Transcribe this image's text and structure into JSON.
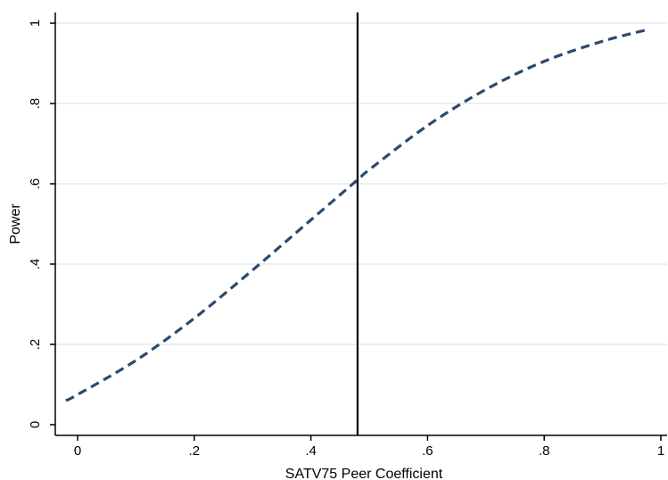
{
  "chart_data": {
    "type": "line",
    "xlabel": "SATV75 Peer Coefficient",
    "ylabel": "Power",
    "xlim": [
      -0.02,
      1.0
    ],
    "ylim": [
      0,
      1
    ],
    "grid": true,
    "x_ticks": [
      {
        "value": 0,
        "label": "0"
      },
      {
        "value": 0.2,
        "label": ".2"
      },
      {
        "value": 0.4,
        "label": ".4"
      },
      {
        "value": 0.6,
        "label": ".6"
      },
      {
        "value": 0.8,
        "label": ".8"
      },
      {
        "value": 1.0,
        "label": "1"
      }
    ],
    "y_ticks": [
      {
        "value": 0,
        "label": "0"
      },
      {
        "value": 0.2,
        "label": ".2"
      },
      {
        "value": 0.4,
        "label": ".4"
      },
      {
        "value": 0.6,
        "label": ".6"
      },
      {
        "value": 0.8,
        "label": ".8"
      },
      {
        "value": 1.0,
        "label": "1"
      }
    ],
    "series": [
      {
        "style": "dashed",
        "color": "#2b4a6e",
        "x": [
          -0.02,
          0.0,
          0.1,
          0.2,
          0.3,
          0.4,
          0.48,
          0.5,
          0.6,
          0.7,
          0.8,
          0.9,
          0.98
        ],
        "y": [
          0.06,
          0.075,
          0.16,
          0.265,
          0.385,
          0.51,
          0.61,
          0.635,
          0.745,
          0.835,
          0.905,
          0.955,
          0.985
        ]
      }
    ],
    "reference_line": {
      "axis": "x",
      "value": 0.48,
      "color": "#000000"
    },
    "colors": {
      "grid": "#e3ebee",
      "axis": "#000000",
      "series": "#2b4a6e"
    }
  }
}
